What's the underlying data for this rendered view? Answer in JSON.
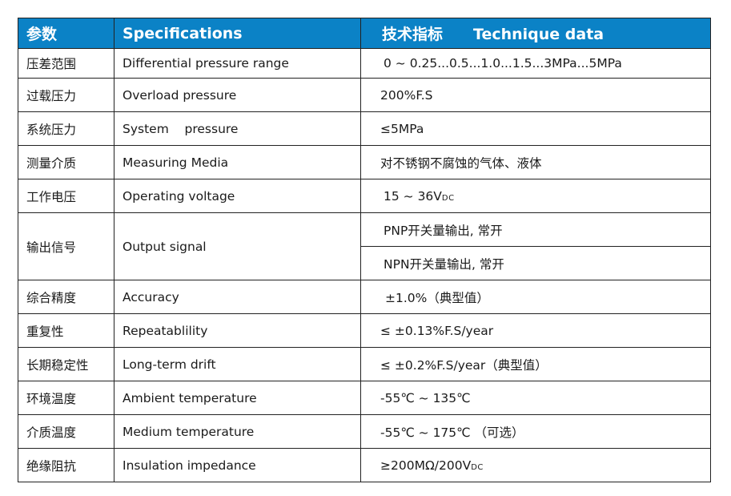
{
  "header": {
    "param_cn": "参数",
    "spec_en": "Specifications",
    "data_cn": "技术指标",
    "data_en": "Technique data"
  },
  "colors": {
    "header_bg": "#0b82c6",
    "header_text": "#ffffff",
    "border": "#222222"
  },
  "rows": [
    {
      "cn": "压差范围",
      "en": "Differential pressure range",
      "value": "0 ~ 0.25...0.5...1.0...1.5...3MPa...5MPa"
    },
    {
      "cn": "过载压力",
      "en": "Overload pressure",
      "value": "200%F.S"
    },
    {
      "cn": "系统压力",
      "en": "System    pressure",
      "value": "≤5MPa"
    },
    {
      "cn": "测量介质",
      "en": "Measuring Media",
      "value": "对不锈钢不腐蚀的气体、液体"
    },
    {
      "cn": "工作电压",
      "en": "Operating voltage",
      "value": "15 ~ 36V",
      "value_sub": "DC"
    },
    {
      "cn": "输出信号",
      "en": "Output signal",
      "value": "PNP开关量输出, 常开",
      "value2": "NPN开关量输出, 常开"
    },
    {
      "cn": "综合精度",
      "en": "Accuracy",
      "value": "±1.0%（典型值）"
    },
    {
      "cn": "重复性",
      "en": "Repeatablility",
      "value": "≤ ±0.13%F.S/year"
    },
    {
      "cn": "长期稳定性",
      "en": "Long-term drift",
      "value": "≤ ±0.2%F.S/year（典型值）"
    },
    {
      "cn": "环境温度",
      "en": "Ambient temperature",
      "value": "-55℃ ~ 135℃"
    },
    {
      "cn": "介质温度",
      "en": "Medium temperature",
      "value": "-55℃ ~ 175℃ （可选）"
    },
    {
      "cn": "绝缘阻抗",
      "en": "Insulation impedance",
      "value": "≥200MΩ/200V",
      "value_sub": "DC"
    }
  ]
}
